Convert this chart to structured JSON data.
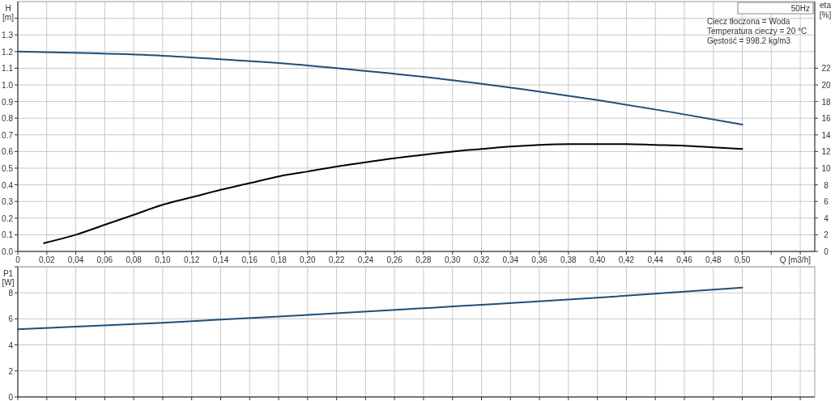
{
  "chart_data": [
    {
      "type": "line",
      "title": "50Hz",
      "xlabel": "Q [m3/h]",
      "ylabel": "H [m]",
      "y2label": "eta [%]",
      "annotations": [
        "Ciecz tłoczona = Woda",
        "Temperatura cieczy = 20 °C",
        "Gęstość = 998.2 kg/m3"
      ],
      "xlim": [
        0,
        0.55
      ],
      "xticks": [
        0,
        {
          "value": 0.02,
          "label": "0,02"
        },
        {
          "value": 0.04,
          "label": "0,04"
        },
        {
          "value": 0.06,
          "label": "0,06"
        },
        {
          "value": 0.08,
          "label": "0,08"
        },
        {
          "value": 0.1,
          "label": "0,10"
        },
        {
          "value": 0.12,
          "label": "0,12"
        },
        {
          "value": 0.14,
          "label": "0,14"
        },
        {
          "value": 0.16,
          "label": "0,16"
        },
        {
          "value": 0.18,
          "label": "0,18"
        },
        {
          "value": 0.2,
          "label": "0,20"
        },
        {
          "value": 0.22,
          "label": "0,22"
        },
        {
          "value": 0.24,
          "label": "0,24"
        },
        {
          "value": 0.26,
          "label": "0,26"
        },
        {
          "value": 0.28,
          "label": "0,28"
        },
        {
          "value": 0.3,
          "label": "0,30"
        },
        {
          "value": 0.32,
          "label": "0,32"
        },
        {
          "value": 0.34,
          "label": "0,34"
        },
        {
          "value": 0.36,
          "label": "0,36"
        },
        {
          "value": 0.38,
          "label": "0,38"
        },
        {
          "value": 0.4,
          "label": "0,40"
        },
        {
          "value": 0.42,
          "label": "0,42"
        },
        {
          "value": 0.44,
          "label": "0,44"
        },
        {
          "value": 0.46,
          "label": "0,46"
        },
        {
          "value": 0.48,
          "label": "0,48"
        },
        {
          "value": 0.5,
          "label": "0,50"
        },
        {
          "value": 0.52,
          "label": null
        },
        {
          "value": 0.54,
          "label": null
        }
      ],
      "ylim": [
        0,
        1.5
      ],
      "yticks": [
        {
          "value": 0,
          "label": "0.0"
        },
        0.1,
        0.2,
        0.3,
        0.4,
        0.5,
        0.6,
        0.7,
        0.8,
        0.9,
        {
          "value": 1,
          "label": "1.0"
        },
        1.1,
        1.2,
        1.3,
        {
          "value": 1.4,
          "label": null
        }
      ],
      "y2lim": [
        0,
        30
      ],
      "y2ticks": [
        0,
        2,
        4,
        6,
        8,
        10,
        12,
        14,
        16,
        18,
        20,
        22
      ],
      "grid": true,
      "marker": "none",
      "line_style": "solid",
      "series": [
        {
          "color": "#1f4e79",
          "x": [
            0,
            0.05,
            0.1,
            0.15,
            0.2,
            0.25,
            0.3,
            0.35,
            0.4,
            0.45,
            0.5
          ],
          "values": [
            1.2,
            1.19,
            1.175,
            1.148,
            1.117,
            1.075,
            1.028,
            0.972,
            0.909,
            0.838,
            0.762
          ]
        },
        {
          "color": "#000000",
          "axis": "y2",
          "x": [
            0.018,
            0.04,
            0.06,
            0.08,
            0.1,
            0.12,
            0.14,
            0.16,
            0.18,
            0.2,
            0.22,
            0.24,
            0.26,
            0.28,
            0.3,
            0.32,
            0.34,
            0.36,
            0.38,
            0.4,
            0.42,
            0.44,
            0.46,
            0.48,
            0.5
          ],
          "values": [
            1.0,
            2.0,
            3.2,
            4.4,
            5.6,
            6.5,
            7.4,
            8.2,
            9.0,
            9.6,
            10.2,
            10.7,
            11.2,
            11.6,
            12.0,
            12.3,
            12.6,
            12.8,
            12.9,
            12.9,
            12.9,
            12.8,
            12.7,
            12.5,
            12.3
          ]
        }
      ]
    },
    {
      "type": "line",
      "ylabel": "P1 [W]",
      "xlim": [
        0,
        0.55
      ],
      "xticks": [
        0,
        0.02,
        0.04,
        0.06,
        0.08,
        0.1,
        0.12,
        0.14,
        0.16,
        0.18,
        0.2,
        0.22,
        0.24,
        0.26,
        0.28,
        0.3,
        0.32,
        0.34,
        0.36,
        0.38,
        0.4,
        0.42,
        0.44,
        0.46,
        0.48,
        0.5,
        0.52,
        0.54
      ],
      "ylim": [
        0,
        10
      ],
      "yticks": [
        0,
        2,
        4,
        6,
        8,
        {
          "value": 10,
          "label": null
        }
      ],
      "tick_labels": "y",
      "grid": true,
      "marker": "none",
      "line_style": "solid",
      "series": [
        {
          "color": "#1f4e79",
          "x": [
            0,
            0.1,
            0.2,
            0.3,
            0.4,
            0.5
          ],
          "values": [
            5.2,
            5.7,
            6.3,
            6.95,
            7.62,
            8.4
          ]
        }
      ]
    }
  ]
}
